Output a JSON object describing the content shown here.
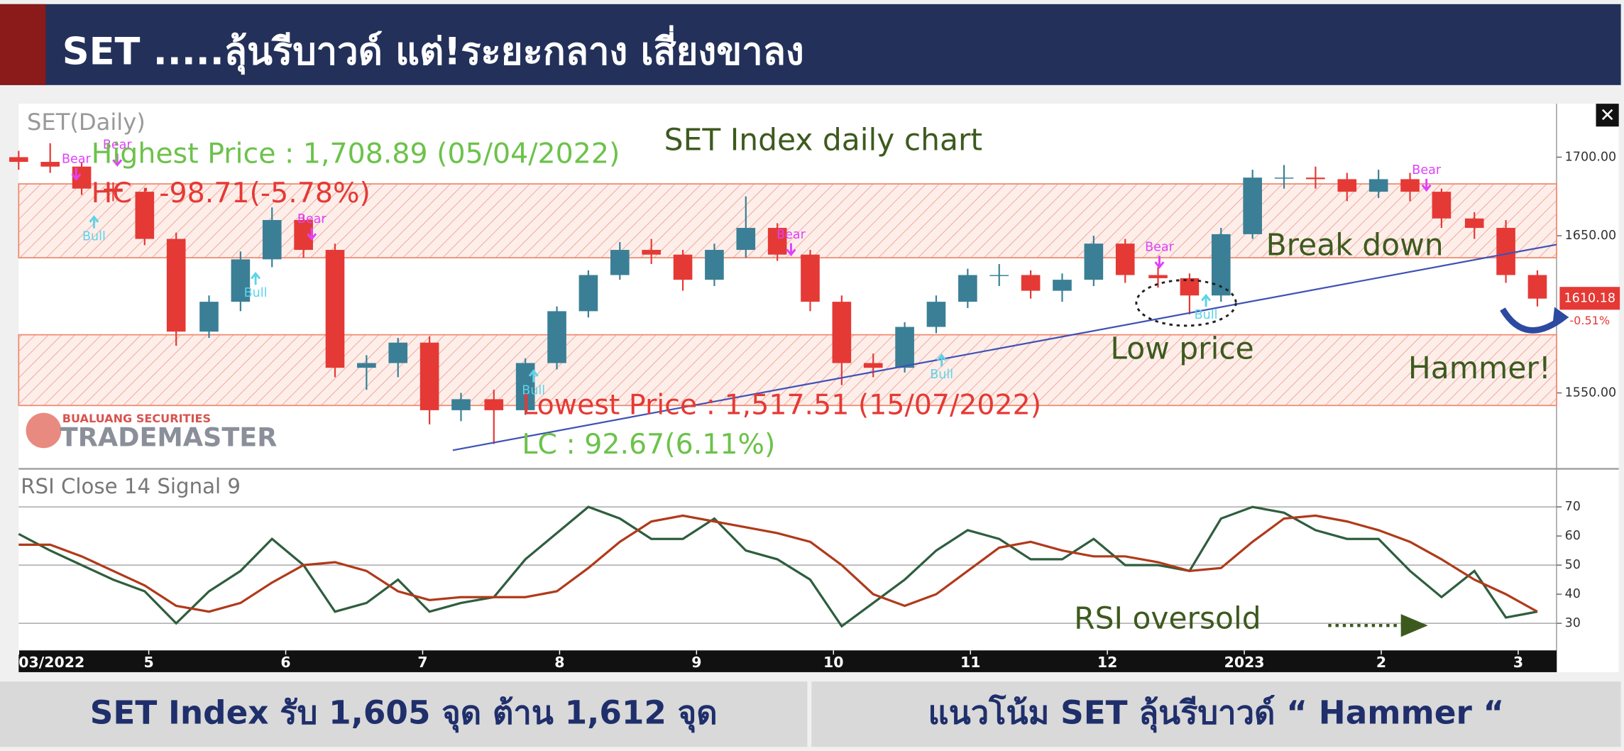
{
  "header": {
    "title": "SET .....ลุ้นรีบาวด์ แต่!ระยะกลาง เสี่ยงขาลง"
  },
  "chart_data": [
    {
      "type": "candlestick",
      "panel_label": "SET(Daily)",
      "title": "SET Index daily chart",
      "annotations": {
        "highest": "Highest Price : 1,708.89 (05/04/2022)",
        "hc": "HC : -98.71(-5.78%)",
        "lowest": "Lowest Price : 1,517.51 (15/07/2022)",
        "lc": "LC : 92.67(6.11%)",
        "break": "Break down",
        "low": "Low price",
        "hammer": "Hammer!"
      },
      "xlim": [
        4.05,
        15.28
      ],
      "ylim": [
        1503,
        1734
      ],
      "yticks": [
        {
          "value": 1550,
          "label": "1550.00"
        },
        {
          "value": 1650,
          "label": "1650.00"
        },
        {
          "value": 1700,
          "label": "1700.00"
        }
      ],
      "x": [
        4.05,
        4.28,
        4.51,
        4.74,
        4.97,
        5.2,
        5.44,
        5.67,
        5.9,
        6.13,
        6.36,
        6.59,
        6.82,
        7.05,
        7.28,
        7.52,
        7.75,
        7.98,
        8.21,
        8.44,
        8.67,
        8.9,
        9.13,
        9.36,
        9.59,
        9.83,
        10.06,
        10.29,
        10.52,
        10.75,
        10.98,
        11.21,
        11.44,
        11.67,
        11.9,
        12.13,
        12.37,
        12.6,
        12.83,
        13.06,
        13.29,
        13.52,
        13.75,
        13.98,
        14.21,
        14.44,
        14.68,
        14.91,
        15.14
      ],
      "open": [
        1700,
        1697,
        1694,
        1680,
        1678,
        1648,
        1589,
        1608,
        1635,
        1660,
        1641,
        1566,
        1569,
        1582,
        1539,
        1546,
        1539,
        1569,
        1602,
        1625,
        1641,
        1638,
        1622,
        1641,
        1655,
        1638,
        1608,
        1569,
        1566,
        1592,
        1608,
        1625,
        1625,
        1615,
        1622,
        1645,
        1625,
        1623,
        1612,
        1651,
        1687,
        1687,
        1686,
        1678,
        1686,
        1678,
        1661,
        1655,
        1625
      ],
      "high": [
        1704,
        1708.89,
        1697,
        1684,
        1680,
        1652,
        1612,
        1640,
        1668,
        1663,
        1645,
        1574,
        1585,
        1586,
        1550,
        1552,
        1572,
        1605,
        1628,
        1646,
        1648,
        1641,
        1645,
        1675,
        1658,
        1641,
        1612,
        1575,
        1595,
        1612,
        1629,
        1632,
        1628,
        1626,
        1650,
        1648,
        1630,
        1626,
        1655,
        1692,
        1695,
        1694,
        1690,
        1692,
        1690,
        1680,
        1665,
        1660,
        1628
      ],
      "low": [
        1692,
        1690,
        1676,
        1672,
        1644,
        1580,
        1585,
        1602,
        1630,
        1636,
        1560,
        1552,
        1560,
        1530,
        1532,
        1517.51,
        1536,
        1565,
        1598,
        1622,
        1632,
        1615,
        1618,
        1636,
        1634,
        1602,
        1555,
        1560,
        1563,
        1588,
        1604,
        1618,
        1610,
        1608,
        1618,
        1620,
        1617,
        1600,
        1608,
        1648,
        1680,
        1680,
        1672,
        1674,
        1672,
        1655,
        1648,
        1620,
        1605
      ],
      "close": [
        1697,
        1694,
        1680,
        1678,
        1648,
        1589,
        1608,
        1635,
        1660,
        1641,
        1566,
        1569,
        1582,
        1539,
        1546,
        1539,
        1569,
        1602,
        1625,
        1641,
        1638,
        1622,
        1641,
        1655,
        1638,
        1608,
        1569,
        1566,
        1592,
        1608,
        1625,
        1625,
        1615,
        1622,
        1645,
        1625,
        1623,
        1612,
        1651,
        1687,
        1687,
        1686,
        1678,
        1686,
        1678,
        1661,
        1655,
        1625,
        1610
      ],
      "up_color": "#3a7f96",
      "down_color": "#e53935",
      "zones": [
        [
          1636,
          1683
        ],
        [
          1542,
          1587
        ]
      ],
      "trend_line": {
        "x": [
          7.22,
          15.28
        ],
        "y": [
          1513.5,
          1644.4
        ],
        "color": "#3f51b5"
      },
      "signals": [
        {
          "label": "Bear",
          "x": 4.47,
          "price": 1684
        },
        {
          "label": "Bear",
          "x": 4.77,
          "price": 1693
        },
        {
          "label": "Bear",
          "x": 6.19,
          "price": 1646
        },
        {
          "label": "Bear",
          "x": 9.69,
          "price": 1636
        },
        {
          "label": "Bear",
          "x": 12.38,
          "price": 1628
        },
        {
          "label": "Bear",
          "x": 14.33,
          "price": 1677
        },
        {
          "label": "Bull",
          "x": 4.6,
          "price": 1664
        },
        {
          "label": "Bull",
          "x": 5.78,
          "price": 1628
        },
        {
          "label": "Bull",
          "x": 7.81,
          "price": 1566
        },
        {
          "label": "Bull",
          "x": 10.79,
          "price": 1576
        },
        {
          "label": "Bull",
          "x": 12.72,
          "price": 1614
        }
      ],
      "last_price": 1610.18,
      "last_change": "-0.51%",
      "logo": {
        "top": "BUALUANG SECURITIES",
        "name": "TRADEMASTER"
      }
    },
    {
      "type": "line",
      "panel_label": "RSI Close 14 Signal 9",
      "annotation": "RSI oversold",
      "xlim": [
        4.05,
        15.28
      ],
      "ylim": [
        20.7,
        82
      ],
      "yticks": [
        30,
        40,
        50,
        60,
        70
      ],
      "guide_lines": [
        30,
        50,
        70
      ],
      "xticks": [
        {
          "value": 4.05,
          "label": "03/2022"
        },
        5,
        6,
        7,
        8,
        9,
        10,
        11,
        12,
        {
          "value": 13,
          "label": "2023"
        },
        {
          "value": 14,
          "label": "2"
        },
        {
          "value": 15,
          "label": "3"
        }
      ],
      "x": [
        4.05,
        4.28,
        4.51,
        4.74,
        4.97,
        5.2,
        5.44,
        5.67,
        5.9,
        6.13,
        6.36,
        6.59,
        6.82,
        7.05,
        7.28,
        7.52,
        7.75,
        7.98,
        8.21,
        8.44,
        8.67,
        8.9,
        9.13,
        9.36,
        9.59,
        9.83,
        10.06,
        10.29,
        10.52,
        10.75,
        10.98,
        11.21,
        11.44,
        11.67,
        11.9,
        12.13,
        12.37,
        12.6,
        12.83,
        13.06,
        13.29,
        13.52,
        13.75,
        13.98,
        14.21,
        14.44,
        14.68,
        14.91,
        15.14
      ],
      "series": [
        {
          "color": "#2e5e3e",
          "values": [
            60.7,
            55,
            50,
            45,
            41,
            30,
            41,
            48,
            59,
            50,
            34,
            37,
            45,
            34,
            37,
            39,
            52,
            61,
            70,
            66,
            59,
            59,
            66,
            55,
            52,
            45,
            29,
            37,
            45,
            55,
            62,
            59,
            52,
            52,
            59,
            50,
            50,
            48,
            66,
            70,
            68,
            62,
            59,
            59,
            48,
            39,
            48,
            32,
            34
          ]
        },
        {
          "color": "#b03a1a",
          "values": [
            57,
            57,
            53,
            48,
            43,
            36,
            34,
            37,
            44,
            50,
            51,
            48,
            41,
            38,
            39,
            39,
            39,
            41,
            49,
            58,
            65,
            67,
            65,
            63,
            61,
            58,
            50,
            40,
            36,
            40,
            48,
            56,
            58,
            55,
            53,
            53,
            51,
            48,
            49,
            58,
            66,
            67,
            65,
            62,
            58,
            52,
            45,
            40,
            34
          ]
        }
      ]
    }
  ],
  "footer": {
    "left": "SET Index รับ 1,605 จุด ต้าน 1,612 จุด",
    "right": "แนวโน้ม SET ลุ้นรีบาวด์ “ Hammer “"
  }
}
